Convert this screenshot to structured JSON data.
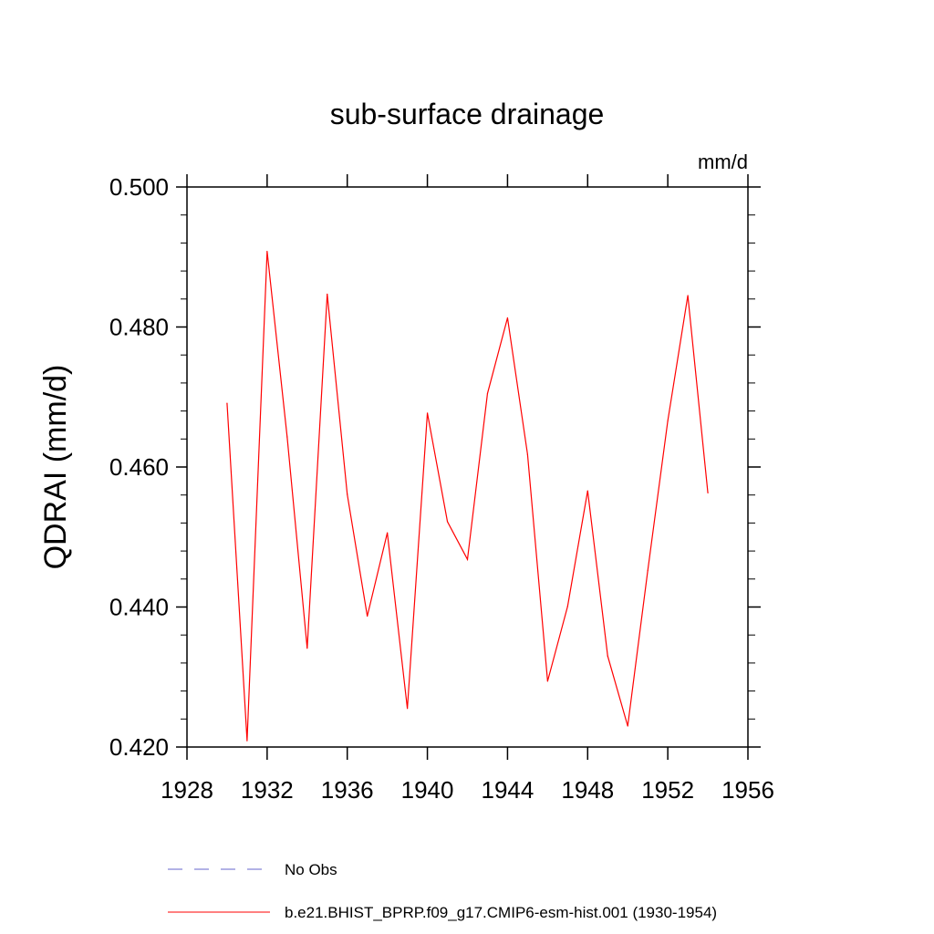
{
  "chart_data": {
    "type": "line",
    "title": "sub-surface drainage",
    "units_label": "mm/d",
    "xlabel": "",
    "ylabel": "QDRAI  (mm/d)",
    "xlim": [
      1928,
      1956
    ],
    "ylim": [
      0.42,
      0.5
    ],
    "x_ticks": [
      1928,
      1932,
      1936,
      1940,
      1944,
      1948,
      1952,
      1956
    ],
    "x_tick_labels": [
      "1928",
      "1932",
      "1936",
      "1940",
      "1944",
      "1948",
      "1952",
      "1956"
    ],
    "y_ticks": [
      0.42,
      0.44,
      0.46,
      0.48,
      0.5
    ],
    "y_tick_labels": [
      "0.420",
      "0.440",
      "0.460",
      "0.480",
      "0.500"
    ],
    "grid": false,
    "series": [
      {
        "name": "b.e21.BHIST_BPRP.f09_g17.CMIP6-esm-hist.001 (1930-1954)",
        "color": "#ff0000",
        "style": "solid",
        "x": [
          1930,
          1931,
          1932,
          1933,
          1934,
          1935,
          1936,
          1937,
          1938,
          1939,
          1940,
          1941,
          1942,
          1943,
          1944,
          1945,
          1946,
          1947,
          1948,
          1949,
          1950,
          1951,
          1952,
          1953,
          1954
        ],
        "values": [
          0.4691,
          0.4209,
          0.4908,
          0.4643,
          0.4341,
          0.4847,
          0.4561,
          0.4387,
          0.4506,
          0.4255,
          0.4677,
          0.4522,
          0.4468,
          0.4705,
          0.4813,
          0.4618,
          0.4294,
          0.4401,
          0.4566,
          0.433,
          0.423,
          0.4452,
          0.4666,
          0.4845,
          0.4563
        ]
      }
    ],
    "legend": [
      {
        "label": "No Obs",
        "color": "#6666cc",
        "style": "dashed"
      },
      {
        "label": "b.e21.BHIST_BPRP.f09_g17.CMIP6-esm-hist.001 (1930-1954)",
        "color": "#ff0000",
        "style": "solid"
      }
    ],
    "legend_placement": "bottom"
  }
}
